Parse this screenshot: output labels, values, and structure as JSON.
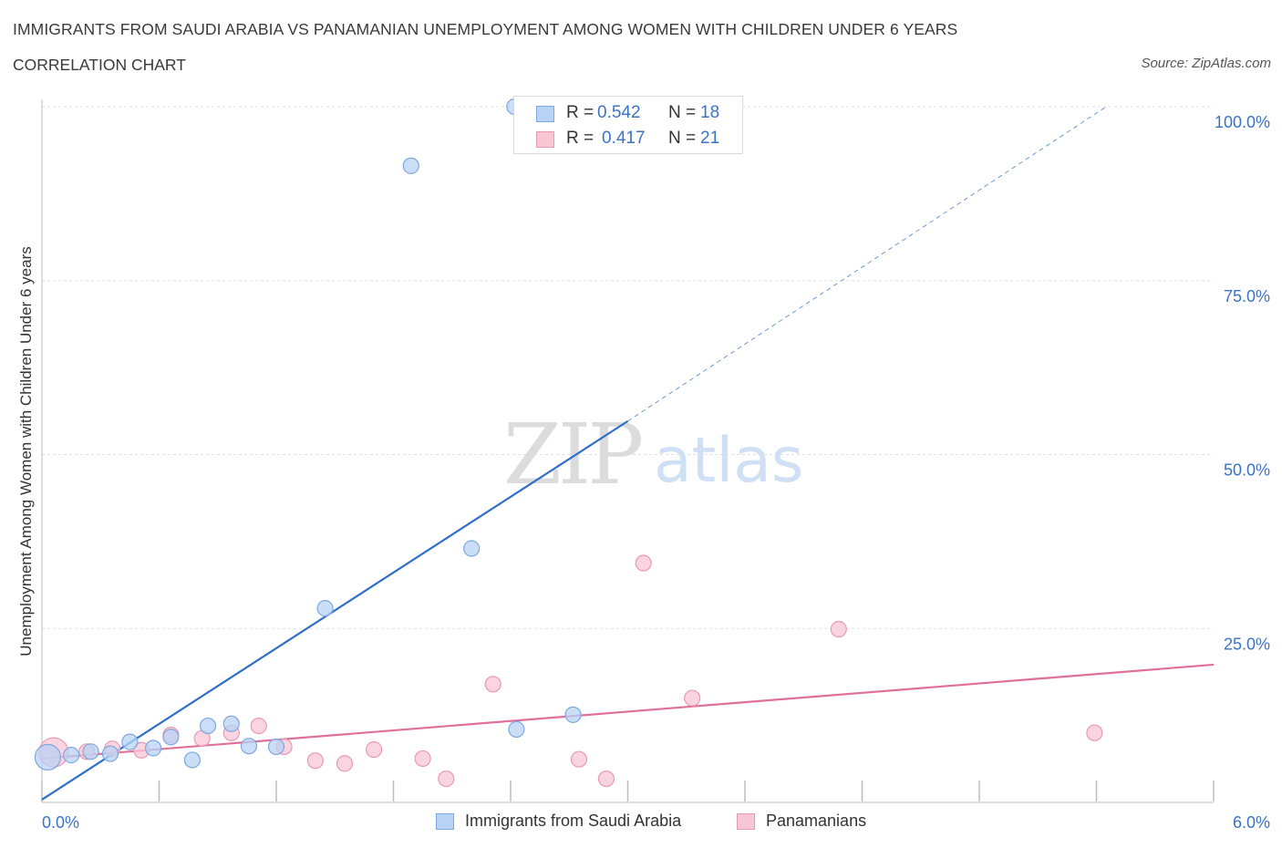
{
  "header": {
    "title": "IMMIGRANTS FROM SAUDI ARABIA VS PANAMANIAN UNEMPLOYMENT AMONG WOMEN WITH CHILDREN UNDER 6 YEARS",
    "subtitle": "CORRELATION CHART",
    "source": "Source: ZipAtlas.com"
  },
  "watermark": {
    "zip": "ZIP",
    "atlas": "atlas"
  },
  "legend": {
    "r_label": "R =",
    "n_label": "N =",
    "rows": [
      {
        "r": "0.542",
        "n": "18"
      },
      {
        "r": "0.417",
        "n": "21"
      }
    ]
  },
  "colors": {
    "blue_fill": "#b8d3f5",
    "blue_stroke": "#7ea8de",
    "blue_line": "#2f6fc9",
    "pink_fill": "#f8c6d5",
    "pink_stroke": "#e99ab2",
    "pink_line": "#e0709a",
    "tick_text": "#3b73c7",
    "grid": "#e0e0e0"
  },
  "chart_data": {
    "type": "scatter",
    "title": "IMMIGRANTS FROM SAUDI ARABIA VS PANAMANIAN UNEMPLOYMENT AMONG WOMEN WITH CHILDREN UNDER 6 YEARS",
    "ylabel": "Unemployment Among Women with Children Under 6 years",
    "xlabel": "",
    "xlim": [
      0,
      6
    ],
    "ylim": [
      0,
      100
    ],
    "x_tick_labels": [
      "0.0%",
      "6.0%"
    ],
    "y_ticks": [
      25,
      50,
      75,
      100
    ],
    "y_tick_labels": [
      "25.0%",
      "50.0%",
      "75.0%",
      "100.0%"
    ],
    "grid": true,
    "legend_position": "bottom",
    "series": [
      {
        "name": "Immigrants from Saudi Arabia",
        "color": "#b8d3f5",
        "r": 0.542,
        "n": 18,
        "points": [
          [
            0.03,
            6.5
          ],
          [
            0.15,
            6.8
          ],
          [
            0.25,
            7.3
          ],
          [
            0.35,
            7.0
          ],
          [
            0.45,
            8.7
          ],
          [
            0.57,
            7.8
          ],
          [
            0.66,
            9.4
          ],
          [
            0.77,
            6.1
          ],
          [
            0.85,
            11.0
          ],
          [
            0.97,
            11.3
          ],
          [
            1.06,
            8.1
          ],
          [
            1.2,
            8.0
          ],
          [
            1.45,
            27.9
          ],
          [
            2.2,
            36.5
          ],
          [
            2.42,
            100.0
          ],
          [
            1.89,
            91.5
          ],
          [
            2.43,
            10.5
          ],
          [
            2.72,
            12.6
          ]
        ],
        "trend": {
          "x0": 0,
          "y0": 0.4,
          "x1": 3.0,
          "y1": 54.8,
          "dashed_to": [
            5.45,
            100.0
          ]
        }
      },
      {
        "name": "Panamanians",
        "color": "#f8c6d5",
        "r": 0.417,
        "n": 21,
        "points": [
          [
            0.06,
            7.2
          ],
          [
            0.23,
            7.3
          ],
          [
            0.36,
            7.7
          ],
          [
            0.51,
            7.5
          ],
          [
            0.66,
            9.7
          ],
          [
            0.82,
            9.2
          ],
          [
            0.97,
            10.0
          ],
          [
            1.11,
            11.0
          ],
          [
            1.24,
            8.0
          ],
          [
            1.4,
            6.0
          ],
          [
            1.55,
            5.6
          ],
          [
            1.7,
            7.6
          ],
          [
            1.95,
            6.3
          ],
          [
            2.07,
            3.4
          ],
          [
            2.31,
            17.0
          ],
          [
            2.75,
            6.2
          ],
          [
            2.89,
            3.4
          ],
          [
            3.08,
            34.4
          ],
          [
            3.33,
            15.0
          ],
          [
            4.08,
            24.9
          ],
          [
            5.39,
            10.0
          ]
        ],
        "trend": {
          "x0": 0,
          "y0": 6.3,
          "x1": 6.0,
          "y1": 19.8
        }
      }
    ]
  }
}
